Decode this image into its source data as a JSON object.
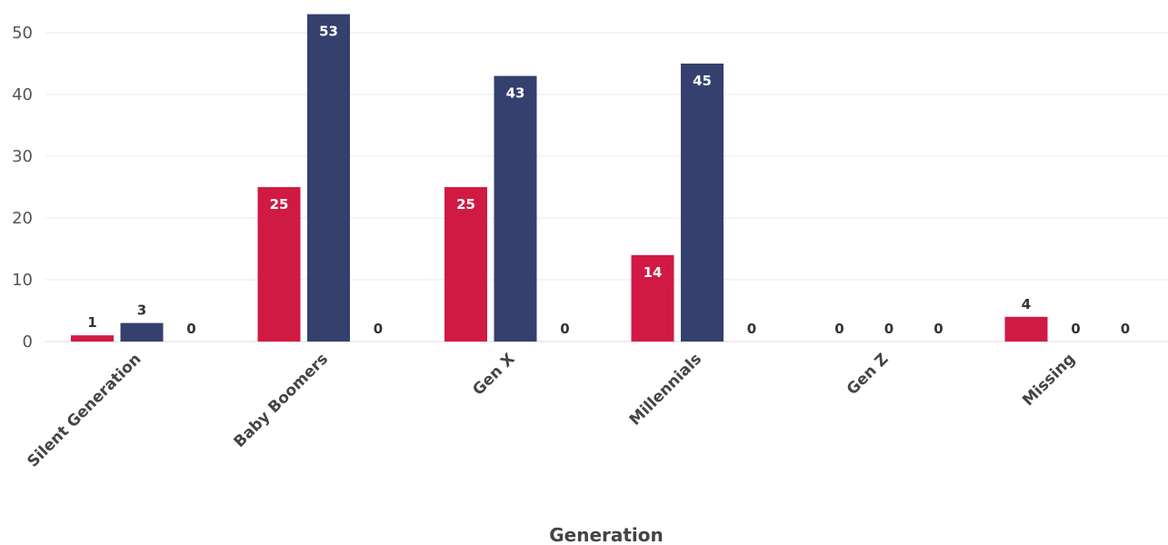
{
  "chart_data": {
    "type": "bar",
    "categories": [
      "Silent Generation",
      "Baby Boomers",
      "Gen X",
      "Millennials",
      "Gen Z",
      "Missing"
    ],
    "series": [
      {
        "color": "#d11a43",
        "values": [
          1,
          25,
          25,
          14,
          0,
          4
        ]
      },
      {
        "color": "#35406e",
        "values": [
          3,
          53,
          43,
          45,
          0,
          0
        ]
      },
      {
        "color": "#8a8a8a",
        "values": [
          0,
          0,
          0,
          0,
          0,
          0
        ]
      }
    ],
    "xlabel": "Generation",
    "ylabel": "",
    "ylim": [
      0,
      55
    ],
    "yticks": [
      0,
      10,
      20,
      30,
      40,
      50
    ],
    "grid": true,
    "data_labels": true
  }
}
